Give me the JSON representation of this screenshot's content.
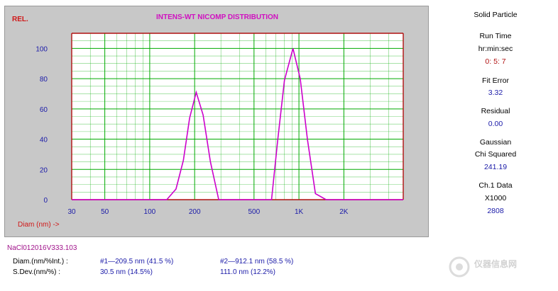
{
  "chart_data": {
    "type": "line",
    "title": "INTENS-WT NICOMP DISTRIBUTION",
    "ylabel": "REL.",
    "xlabel": "Diam (nm) ->",
    "x_scale": "log",
    "xlim": [
      30,
      5000
    ],
    "ylim": [
      0,
      110
    ],
    "x_ticks": [
      30,
      50,
      100,
      200,
      500,
      1000,
      2000
    ],
    "x_tick_labels": [
      "30",
      "50",
      "100",
      "200",
      "500",
      "1K",
      "2K"
    ],
    "y_ticks": [
      0,
      20,
      40,
      60,
      80,
      100
    ],
    "grid": true,
    "line_color": "#cc00cc",
    "grid_color": "#00aa00",
    "series": [
      {
        "x": [
          30,
          130,
          150,
          168,
          185,
          205,
          228,
          255,
          290,
          655,
          720,
          800,
          912,
          1020,
          1140,
          1290,
          1520,
          5000
        ],
        "y": [
          0,
          0,
          7,
          26,
          54,
          71,
          56,
          25,
          0,
          0,
          39,
          79,
          100,
          80,
          40,
          4,
          0,
          0
        ]
      }
    ]
  },
  "side": {
    "mode": "Solid Particle",
    "run_time_label": "Run Time",
    "run_time_unit": "hr:min:sec",
    "run_time_value": "0: 5: 7",
    "fit_error_label": "Fit Error",
    "fit_error_value": "3.32",
    "residual_label": "Residual",
    "residual_value": "0.00",
    "gaussian_label": "Gaussian",
    "chi_label": "Chi Squared",
    "chi_value": "241.19",
    "ch1_label": "Ch.1 Data",
    "ch1_unit": "X1000",
    "ch1_value": "2808"
  },
  "sample_name": "NaCl012016V333.103",
  "stats": {
    "diam_label": "Diam.(nm/%Int.) :",
    "sdev_label": "S.Dev.(nm/%) :",
    "peak1_diam": "#1—209.5 nm (41.5 %)",
    "peak2_diam": "#2—912.1 nm (58.5 %)",
    "peak1_sdev": "30.5 nm (14.5%)",
    "peak2_sdev": "111.0 nm (12.2%)"
  },
  "watermark": "仪器信息网"
}
